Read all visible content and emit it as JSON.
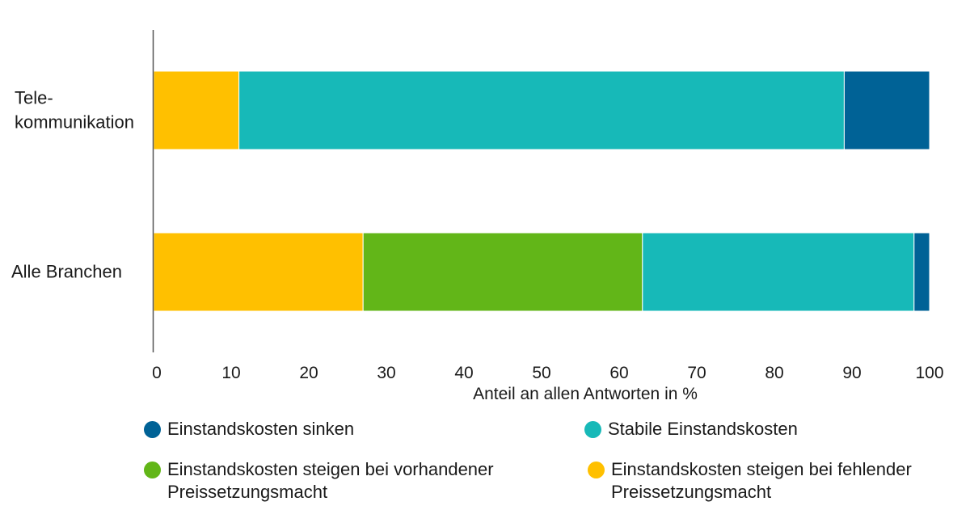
{
  "chart_data": {
    "type": "bar",
    "orientation": "horizontal",
    "stacked": true,
    "categories": [
      "Tele-\nkommunikation",
      "Alle Branchen"
    ],
    "series": [
      {
        "name": "Einstandskosten steigen bei fehlender Preissetzungsmacht",
        "color": "#FFC000",
        "values": [
          11,
          27
        ]
      },
      {
        "name": "Einstandskosten steigen bei vorhandener Preissetzungsmacht",
        "color": "#62B618",
        "values": [
          0,
          36
        ]
      },
      {
        "name": "Stabile Einstandskosten",
        "color": "#17B9B8",
        "values": [
          78,
          35
        ]
      },
      {
        "name": "Einstandskosten sinken",
        "color": "#006296",
        "values": [
          11,
          2
        ]
      }
    ],
    "xlabel": "Anteil an allen Antworten in %",
    "xlim": [
      0,
      100
    ],
    "xticks": [
      0,
      10,
      20,
      30,
      40,
      50,
      60,
      70,
      80,
      90,
      100
    ],
    "grid": false,
    "legend_position": "bottom"
  },
  "legend": [
    {
      "label": "Einstandskosten sinken",
      "color": "#006296"
    },
    {
      "label": "Stabile Einstandskosten",
      "color": "#17B9B8"
    },
    {
      "label": "Einstandskosten steigen bei vorhandener\nPreissetzungsmacht",
      "color": "#62B618"
    },
    {
      "label": "Einstandskosten steigen bei fehlender\nPreissetzungsmacht",
      "color": "#FFC000"
    }
  ]
}
